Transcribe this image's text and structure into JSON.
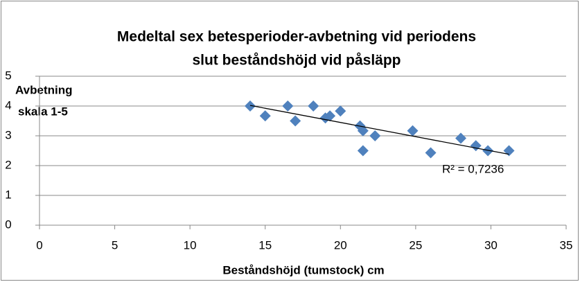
{
  "chart_data": {
    "type": "scatter",
    "title": [
      "Medeltal sex betesperioder-avbetning vid periodens",
      "slut beståndshöjd vid påsläpp"
    ],
    "xlabel": "Beståndshöjd (tumstock) cm",
    "ylabel": [
      "Avbetning",
      "skala 1-5"
    ],
    "series": [
      {
        "color": "#4f81bd",
        "x": [
          14,
          15,
          16.5,
          17,
          18.2,
          19,
          19.3,
          20,
          21.3,
          21.5,
          21.5,
          22.3,
          24.8,
          26,
          28,
          29,
          29.8,
          31.2
        ],
        "values": [
          4,
          3.67,
          4,
          3.5,
          4,
          3.6,
          3.67,
          3.83,
          3.33,
          3.17,
          2.5,
          3.0,
          3.17,
          2.43,
          2.92,
          2.67,
          2.5,
          2.5
        ]
      }
    ],
    "trendline": {
      "x": [
        14,
        31.2
      ],
      "values": [
        4.02,
        2.38
      ],
      "color": "#000000",
      "annotation": "R² = 0,7236"
    },
    "xlim": [
      0,
      35
    ],
    "xticks": [
      0,
      5,
      10,
      15,
      20,
      25,
      30,
      35
    ],
    "ylim": [
      0,
      5
    ],
    "yticks": [
      0,
      1,
      2,
      3,
      4,
      5
    ],
    "grid": true
  }
}
